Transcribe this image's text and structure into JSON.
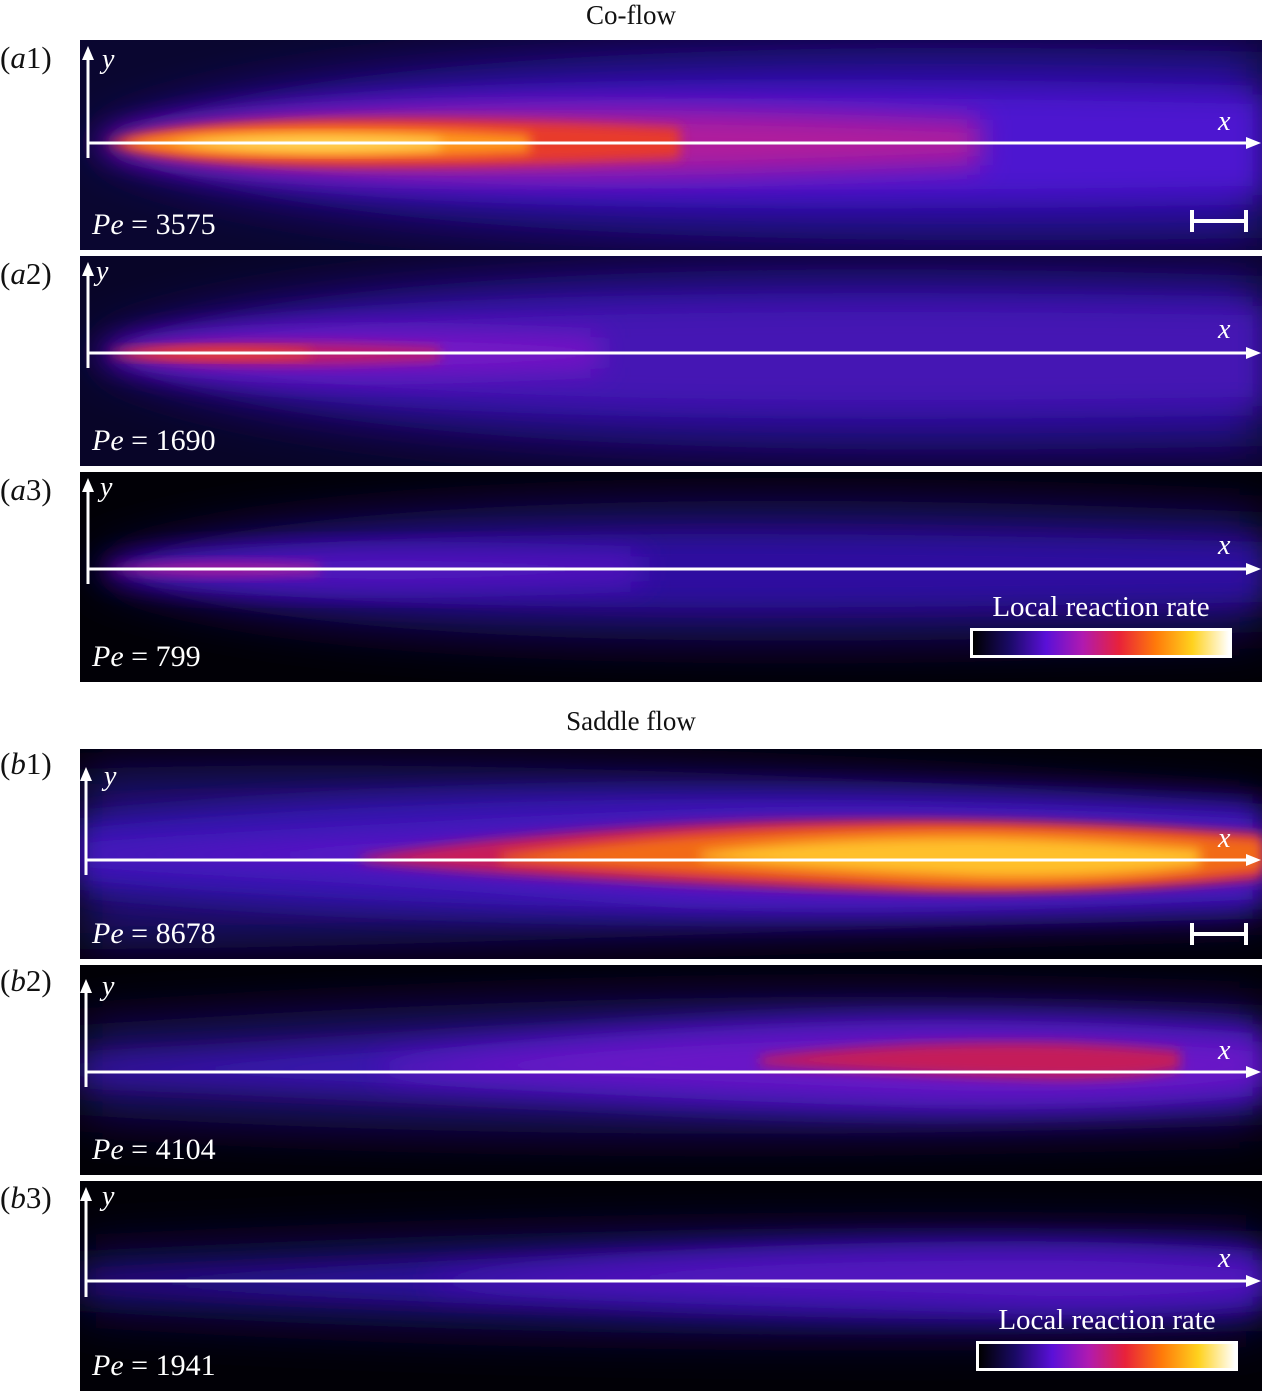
{
  "sections": {
    "coflow_title": "Co-flow",
    "saddle_title": "Saddle flow"
  },
  "axis": {
    "x": "x",
    "y": "y"
  },
  "pe_prefix": "Pe",
  "pe_eq": " = ",
  "panels": [
    {
      "label_letter": "a",
      "label_num": "1",
      "pe": "3575"
    },
    {
      "label_letter": "a",
      "label_num": "2",
      "pe": "1690"
    },
    {
      "label_letter": "a",
      "label_num": "3",
      "pe": "799"
    },
    {
      "label_letter": "b",
      "label_num": "1",
      "pe": "8678"
    },
    {
      "label_letter": "b",
      "label_num": "2",
      "pe": "4104"
    },
    {
      "label_letter": "b",
      "label_num": "3",
      "pe": "1941"
    }
  ],
  "colorbar": {
    "title": "Local reaction rate",
    "colors": [
      "#000000",
      "#1a0a66",
      "#5a10d8",
      "#b01ab0",
      "#e8223a",
      "#ff7a0a",
      "#ffd21e",
      "#ffffff"
    ]
  }
}
